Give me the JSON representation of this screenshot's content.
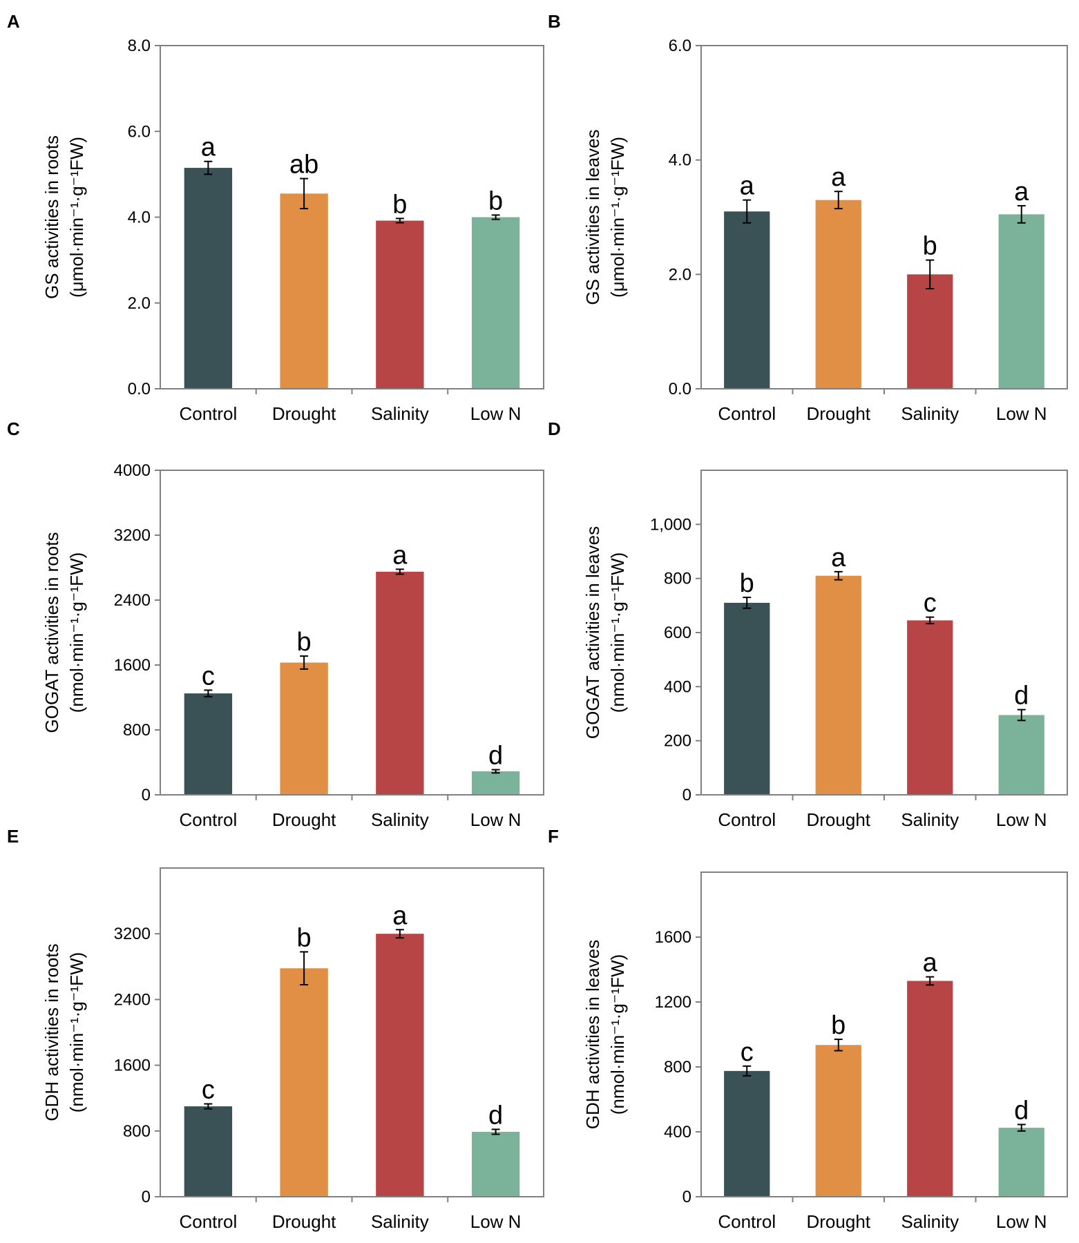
{
  "colors": {
    "Control": "#3a5155",
    "Drought": "#e08f45",
    "Salinity": "#b84545",
    "Low N": "#7ab39a"
  },
  "chart_data": [
    {
      "panel": "A",
      "type": "bar",
      "categories": [
        "Control",
        "Drought",
        "Salinity",
        "Low N"
      ],
      "values": [
        5.15,
        4.55,
        3.92,
        4.0
      ],
      "errors": [
        0.15,
        0.35,
        0.05,
        0.05
      ],
      "significance": [
        "a",
        "ab",
        "b",
        "b"
      ],
      "ylabel_line1": "GS activities in roots",
      "ylabel_line2": "(μmol·min⁻¹·g⁻¹FW)",
      "yticks": [
        "0.0",
        "2.0",
        "4.0",
        "6.0",
        "8.0"
      ],
      "ytick_values": [
        0,
        2,
        4,
        6,
        8
      ],
      "ylim": [
        0,
        8
      ]
    },
    {
      "panel": "B",
      "type": "bar",
      "categories": [
        "Control",
        "Drought",
        "Salinity",
        "Low N"
      ],
      "values": [
        3.1,
        3.3,
        2.0,
        3.05
      ],
      "errors": [
        0.2,
        0.15,
        0.25,
        0.15
      ],
      "significance": [
        "a",
        "a",
        "b",
        "a"
      ],
      "ylabel_line1": "GS activities in leaves",
      "ylabel_line2": "(μmol·min⁻¹·g⁻¹FW)",
      "yticks": [
        "0.0",
        "2.0",
        "4.0",
        "6.0"
      ],
      "ytick_values": [
        0,
        2,
        4,
        6
      ],
      "ylim": [
        0,
        6
      ]
    },
    {
      "panel": "C",
      "type": "bar",
      "categories": [
        "Control",
        "Drought",
        "Salinity",
        "Low N"
      ],
      "values": [
        1250,
        1630,
        2750,
        290
      ],
      "errors": [
        40,
        80,
        30,
        20
      ],
      "significance": [
        "c",
        "b",
        "a",
        "d"
      ],
      "ylabel_line1": "GOGAT activities in roots",
      "ylabel_line2": "(nmol·min⁻¹·g⁻¹FW)",
      "yticks": [
        "0",
        "800",
        "1600",
        "2400",
        "3200",
        "4000"
      ],
      "ytick_values": [
        0,
        800,
        1600,
        2400,
        3200,
        4000
      ],
      "ylim": [
        0,
        4000
      ]
    },
    {
      "panel": "D",
      "type": "bar",
      "categories": [
        "Control",
        "Drought",
        "Salinity",
        "Low N"
      ],
      "values": [
        710,
        810,
        645,
        295
      ],
      "errors": [
        20,
        15,
        12,
        20
      ],
      "significance": [
        "b",
        "a",
        "c",
        "d"
      ],
      "ylabel_line1": "GOGAT activities in leaves",
      "ylabel_line2": "(nmol·min⁻¹·g⁻¹FW)",
      "yticks": [
        "0",
        "200",
        "400",
        "600",
        "800",
        "1,000"
      ],
      "ytick_values": [
        0,
        200,
        400,
        600,
        800,
        1000
      ],
      "ylim": [
        0,
        1200
      ]
    },
    {
      "panel": "E",
      "type": "bar",
      "categories": [
        "Control",
        "Drought",
        "Salinity",
        "Low N"
      ],
      "values": [
        1100,
        2780,
        3200,
        790
      ],
      "errors": [
        30,
        200,
        50,
        30
      ],
      "significance": [
        "c",
        "b",
        "a",
        "d"
      ],
      "ylabel_line1": "GDH activities in roots",
      "ylabel_line2": "(nmol·min⁻¹·g⁻¹FW)",
      "yticks": [
        "0",
        "800",
        "1600",
        "2400",
        "3200"
      ],
      "ytick_values": [
        0,
        800,
        1600,
        2400,
        3200
      ],
      "ylim": [
        0,
        4000
      ]
    },
    {
      "panel": "F",
      "type": "bar",
      "categories": [
        "Control",
        "Drought",
        "Salinity",
        "Low N"
      ],
      "values": [
        775,
        935,
        1330,
        425
      ],
      "errors": [
        30,
        35,
        25,
        20
      ],
      "significance": [
        "c",
        "b",
        "a",
        "d"
      ],
      "ylabel_line1": "GDH activities in leaves",
      "ylabel_line2": "(nmol·min⁻¹·g⁻¹FW)",
      "yticks": [
        "0",
        "400",
        "800",
        "1200",
        "1600"
      ],
      "ytick_values": [
        0,
        400,
        800,
        1200,
        1600
      ],
      "ylim": [
        0,
        2000
      ]
    }
  ]
}
